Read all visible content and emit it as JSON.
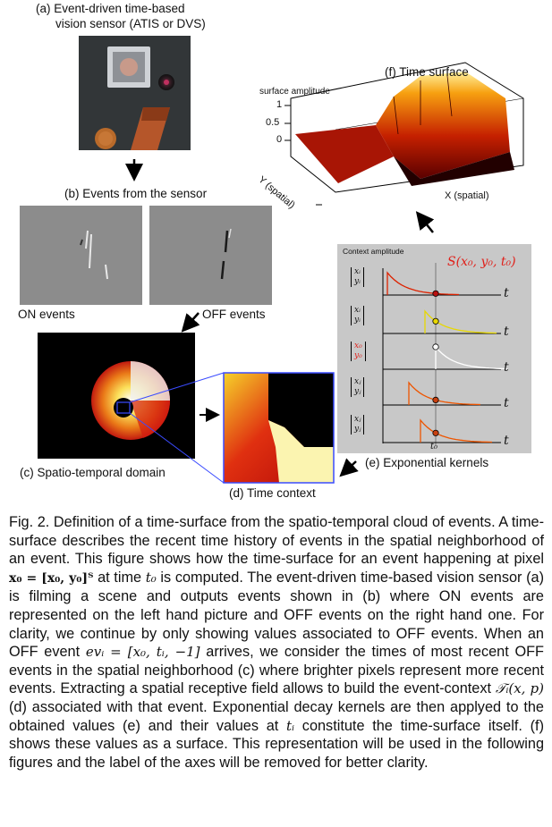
{
  "panels": {
    "a": "(a) Event-driven time-based",
    "a2": "vision sensor (ATIS or DVS)",
    "b": "(b) Events from the sensor",
    "on": "ON events",
    "off": "OFF events",
    "c": "(c) Spatio-temporal domain",
    "d": "(d) Time context",
    "e": "(e) Exponential kernels",
    "f": "(f) Time surface"
  },
  "surface": {
    "zlabel": "surface amplitude",
    "ticks": [
      "1",
      "0.5",
      "0"
    ],
    "ylabel": "Y (spatial)",
    "xlabel": "X (spatial)"
  },
  "kernels": {
    "ylabel": "Context amplitude",
    "formula": "S(x₀, y₀, t₀)",
    "t": "t",
    "t0": "t₀",
    "rows": [
      {
        "top": "xᵢ",
        "bot": "yᵢ",
        "color": "#dd2200"
      },
      {
        "top": "xᵢ",
        "bot": "yᵢ",
        "color": "#e8d800"
      },
      {
        "top": "x₀",
        "bot": "y₀",
        "color": "#dd2200"
      },
      {
        "top": "xⱼ",
        "bot": "yⱼ",
        "color": "#ee5500"
      },
      {
        "top": "xⱼ",
        "bot": "yⱼ",
        "color": "#ee5500"
      }
    ]
  },
  "caption": {
    "p1": "Fig. 2. Definition of a time-surface from the spatio-temporal cloud of events. A time-surface describes the recent time history of events in the spatial neighborhood of an event. This figure shows how the time-surface for an event happening at pixel ",
    "m1": "x₀ = [x₀, y₀]ᵀ",
    "p2": " at time ",
    "m2": "t₀",
    "p3": " is computed. The event-driven time-based vision sensor (a) is filming a scene and outputs events shown in (b) where ON events are represented on the left hand picture and OFF events on the right hand one. For clarity, we continue by only showing values associated to OFF events. When an OFF event ",
    "m3": "evᵢ = [x₀, tᵢ, −1]",
    "p4": " arrives, we consider the times of most recent OFF events in the spatial neighborhood (c) where brighter pixels represent more recent events. Extracting a spatial receptive field allows to build the event-context ",
    "m4": "𝒯ᵢ(x, p)",
    "p5": " (d) associated with that event. Exponential decay kernels are then applyed to the obtained values (e) and their values at ",
    "m5": "tᵢ",
    "p6": " constitute the time-surface itself. (f) shows these values as a surface. This representation will be used in the following figures and the label of the axes will be removed for better clarity."
  }
}
